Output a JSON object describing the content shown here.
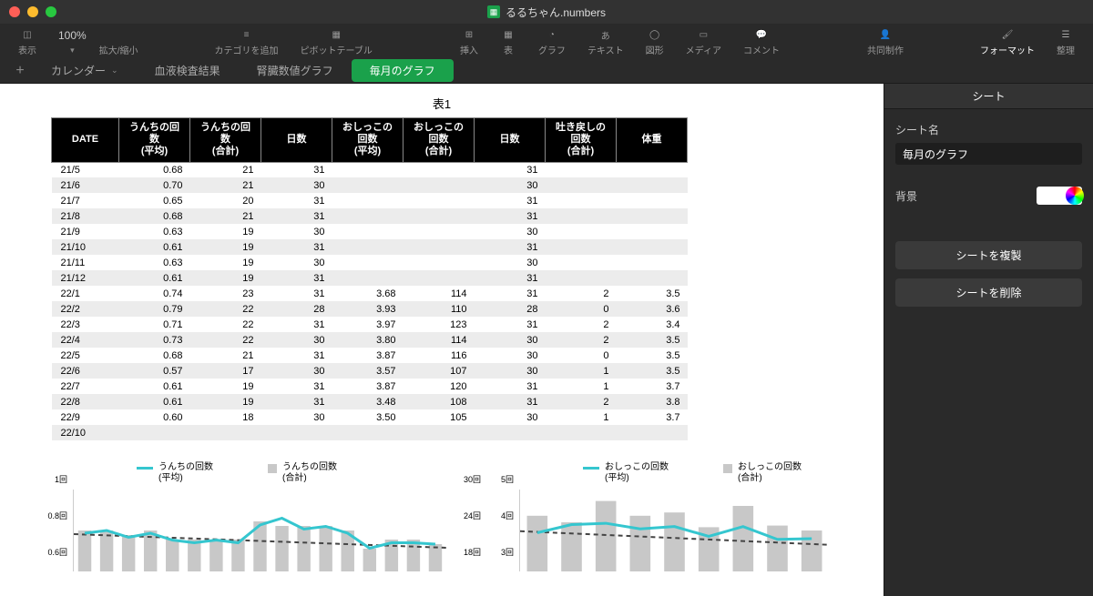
{
  "window": {
    "title": "るるちゃん.numbers"
  },
  "traffic_colors": [
    "#ff5f57",
    "#febc2e",
    "#28c840"
  ],
  "toolbar": {
    "zoom": "100%",
    "items_left": [
      {
        "icon": "sidebar",
        "label": "表示"
      },
      {
        "icon": "",
        "label": "拡大/縮小"
      },
      {
        "icon": "list",
        "label": "カテゴリを追加"
      },
      {
        "icon": "pivot",
        "label": "ピボットテーブル"
      }
    ],
    "items_center": [
      {
        "icon": "+",
        "label": "挿入"
      },
      {
        "icon": "grid",
        "label": "表"
      },
      {
        "icon": "chart",
        "label": "グラフ"
      },
      {
        "icon": "text",
        "label": "テキスト"
      },
      {
        "icon": "shape",
        "label": "図形"
      },
      {
        "icon": "media",
        "label": "メディア"
      },
      {
        "icon": "comment",
        "label": "コメント"
      }
    ],
    "items_right": [
      {
        "icon": "collab",
        "label": "共同制作"
      },
      {
        "icon": "brush",
        "label": "フォーマット",
        "active": true
      },
      {
        "icon": "sliders",
        "label": "整理"
      }
    ]
  },
  "sheet_tabs": {
    "add": "+",
    "tabs": [
      {
        "label": "カレンダー",
        "dropdown": true
      },
      {
        "label": "血液検査結果"
      },
      {
        "label": "腎臓数値グラフ"
      },
      {
        "label": "毎月のグラフ",
        "active": true
      }
    ]
  },
  "inspector": {
    "tab": "シート",
    "name_label": "シート名",
    "name_value": "毎月のグラフ",
    "bg_label": "背景",
    "dup_btn": "シートを複製",
    "del_btn": "シートを削除"
  },
  "table": {
    "title": "表1",
    "columns": [
      "DATE",
      "うんちの回数\n(平均)",
      "うんちの回数\n(合計)",
      "日数",
      "おしっこの回数\n(平均)",
      "おしっこの回数\n(合計)",
      "日数",
      "吐き戻しの回数\n(合計)",
      "体重"
    ],
    "rows": [
      [
        "21/5",
        "0.68",
        "21",
        "31",
        "",
        "",
        "31",
        "",
        ""
      ],
      [
        "21/6",
        "0.70",
        "21",
        "30",
        "",
        "",
        "30",
        "",
        ""
      ],
      [
        "21/7",
        "0.65",
        "20",
        "31",
        "",
        "",
        "31",
        "",
        ""
      ],
      [
        "21/8",
        "0.68",
        "21",
        "31",
        "",
        "",
        "31",
        "",
        ""
      ],
      [
        "21/9",
        "0.63",
        "19",
        "30",
        "",
        "",
        "30",
        "",
        ""
      ],
      [
        "21/10",
        "0.61",
        "19",
        "31",
        "",
        "",
        "31",
        "",
        ""
      ],
      [
        "21/11",
        "0.63",
        "19",
        "30",
        "",
        "",
        "30",
        "",
        ""
      ],
      [
        "21/12",
        "0.61",
        "19",
        "31",
        "",
        "",
        "31",
        "",
        ""
      ],
      [
        "22/1",
        "0.74",
        "23",
        "31",
        "3.68",
        "114",
        "31",
        "2",
        "3.5"
      ],
      [
        "22/2",
        "0.79",
        "22",
        "28",
        "3.93",
        "110",
        "28",
        "0",
        "3.6"
      ],
      [
        "22/3",
        "0.71",
        "22",
        "31",
        "3.97",
        "123",
        "31",
        "2",
        "3.4"
      ],
      [
        "22/4",
        "0.73",
        "22",
        "30",
        "3.80",
        "114",
        "30",
        "2",
        "3.5"
      ],
      [
        "22/5",
        "0.68",
        "21",
        "31",
        "3.87",
        "116",
        "30",
        "0",
        "3.5"
      ],
      [
        "22/6",
        "0.57",
        "17",
        "30",
        "3.57",
        "107",
        "30",
        "1",
        "3.5"
      ],
      [
        "22/7",
        "0.61",
        "19",
        "31",
        "3.87",
        "120",
        "31",
        "1",
        "3.7"
      ],
      [
        "22/8",
        "0.61",
        "19",
        "31",
        "3.48",
        "108",
        "31",
        "2",
        "3.8"
      ],
      [
        "22/9",
        "0.60",
        "18",
        "30",
        "3.50",
        "105",
        "30",
        "1",
        "3.7"
      ],
      [
        "22/10",
        "",
        "",
        "",
        "",
        "",
        "",
        "",
        ""
      ]
    ]
  },
  "chart1": {
    "legend": [
      {
        "type": "line",
        "color": "#35c6cf",
        "label": "うんちの回数\n(平均)"
      },
      {
        "type": "bar",
        "color": "#c8c8c8",
        "label": "うんちの回数\n(合計)"
      }
    ],
    "y_left": [
      "1回",
      "0.8回",
      "0.6回"
    ],
    "y_right": [
      "30回",
      "24回",
      "18回"
    ],
    "line_color": "#35c6cf",
    "bar_color": "#c8c8c8",
    "trend_color": "#444444",
    "bars": [
      21,
      21,
      20,
      21,
      19,
      19,
      19,
      19,
      23,
      22,
      22,
      22,
      21,
      17,
      19,
      19,
      18
    ],
    "line": [
      0.68,
      0.7,
      0.65,
      0.68,
      0.63,
      0.61,
      0.63,
      0.61,
      0.74,
      0.79,
      0.71,
      0.73,
      0.68,
      0.57,
      0.61,
      0.61,
      0.6
    ],
    "bar_range": [
      12,
      30
    ],
    "line_range": [
      0.4,
      1.0
    ]
  },
  "chart2": {
    "legend": [
      {
        "type": "line",
        "color": "#35c6cf",
        "label": "おしっこの回数\n(平均)"
      },
      {
        "type": "bar",
        "color": "#c8c8c8",
        "label": "おしっこの回数\n(合計)"
      }
    ],
    "y_left": [
      "5回",
      "4回",
      "3回"
    ],
    "line_color": "#35c6cf",
    "bar_color": "#c8c8c8",
    "trend_color": "#444444",
    "bars": [
      114,
      110,
      123,
      114,
      116,
      107,
      120,
      108,
      105
    ],
    "line": [
      3.68,
      3.93,
      3.97,
      3.8,
      3.87,
      3.57,
      3.87,
      3.48,
      3.5
    ],
    "bar_range": [
      80,
      130
    ],
    "line_range": [
      2.5,
      5.0
    ]
  }
}
